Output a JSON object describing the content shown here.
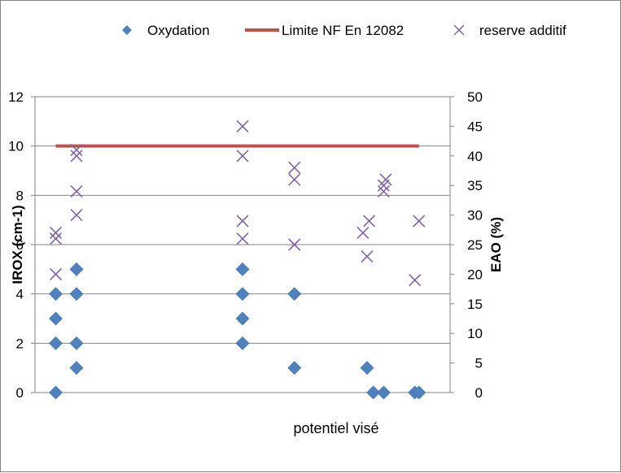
{
  "chart_data": {
    "type": "scatter",
    "title": "",
    "xlabel": "potentiel visé",
    "ylabel": "IROX (cm-1)",
    "y2label": "EAO (%)",
    "ylim": [
      0,
      12
    ],
    "y2lim": [
      0,
      50
    ],
    "yticks": [
      "0",
      "2",
      "4",
      "6",
      "8",
      "10",
      "12"
    ],
    "y2ticks": [
      "0",
      "5",
      "10",
      "15",
      "20",
      "25",
      "30",
      "35",
      "40",
      "45",
      "50"
    ],
    "grid": true,
    "legend_position": "top",
    "series": [
      {
        "name": "Oxydation",
        "axis": "left",
        "marker": "diamond",
        "color": "#4f81bd",
        "points": [
          {
            "x": 1,
            "y": 0
          },
          {
            "x": 1,
            "y": 2
          },
          {
            "x": 1,
            "y": 3
          },
          {
            "x": 1,
            "y": 4
          },
          {
            "x": 2,
            "y": 1
          },
          {
            "x": 2,
            "y": 2
          },
          {
            "x": 2,
            "y": 4
          },
          {
            "x": 2,
            "y": 5
          },
          {
            "x": 10,
            "y": 2
          },
          {
            "x": 10,
            "y": 3
          },
          {
            "x": 10,
            "y": 4
          },
          {
            "x": 10,
            "y": 5
          },
          {
            "x": 12.5,
            "y": 1
          },
          {
            "x": 12.5,
            "y": 4
          },
          {
            "x": 16,
            "y": 1
          },
          {
            "x": 16.3,
            "y": 0
          },
          {
            "x": 16.8,
            "y": 0
          },
          {
            "x": 18.3,
            "y": 0
          },
          {
            "x": 18.5,
            "y": 0
          }
        ]
      },
      {
        "name": "Limite NF En 12082",
        "axis": "left",
        "marker": "line",
        "color": "#c0504d",
        "points": [
          {
            "x": 1,
            "y": 10
          },
          {
            "x": 18.5,
            "y": 10
          }
        ]
      },
      {
        "name": "reserve additif",
        "axis": "right",
        "marker": "x",
        "color": "#8064a2",
        "points": [
          {
            "x": 1,
            "y": 20
          },
          {
            "x": 1,
            "y": 26
          },
          {
            "x": 1,
            "y": 27
          },
          {
            "x": 2,
            "y": 30
          },
          {
            "x": 2,
            "y": 34
          },
          {
            "x": 2,
            "y": 40
          },
          {
            "x": 2,
            "y": 41
          },
          {
            "x": 10,
            "y": 26
          },
          {
            "x": 10,
            "y": 29
          },
          {
            "x": 10,
            "y": 40
          },
          {
            "x": 10,
            "y": 45
          },
          {
            "x": 12.5,
            "y": 25
          },
          {
            "x": 12.5,
            "y": 36
          },
          {
            "x": 12.5,
            "y": 38
          },
          {
            "x": 15.8,
            "y": 27
          },
          {
            "x": 16,
            "y": 23
          },
          {
            "x": 16.1,
            "y": 29
          },
          {
            "x": 16.8,
            "y": 34
          },
          {
            "x": 16.8,
            "y": 35
          },
          {
            "x": 16.9,
            "y": 36
          },
          {
            "x": 18.3,
            "y": 19
          },
          {
            "x": 18.5,
            "y": 29
          }
        ]
      }
    ]
  }
}
